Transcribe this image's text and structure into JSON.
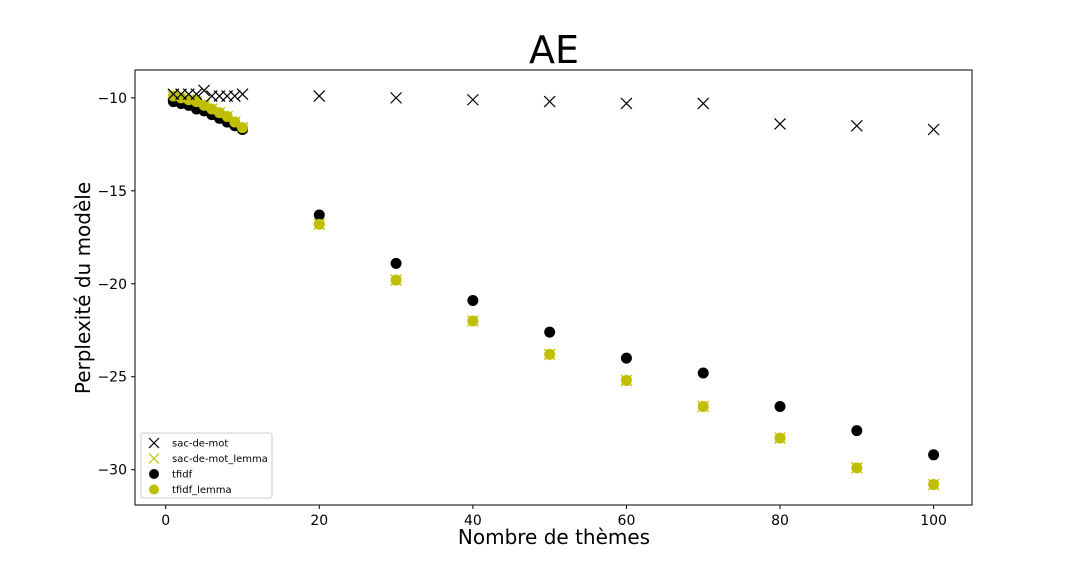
{
  "chart_data": {
    "type": "scatter",
    "title": "AE",
    "xlabel": "Nombre de thèmes",
    "ylabel": "Perplexité du modèle",
    "xlim": [
      -4,
      105
    ],
    "ylim": [
      -31.9,
      -8.5
    ],
    "xticks": [
      0,
      20,
      40,
      60,
      80,
      100
    ],
    "yticks": [
      -10,
      -15,
      -20,
      -25,
      -30
    ],
    "grid": false,
    "legend_position": "lower-left",
    "series": [
      {
        "name": "sac-de-mot",
        "marker": "x",
        "color": "#000000",
        "x": [
          1,
          2,
          3,
          4,
          5,
          6,
          7,
          8,
          9,
          10,
          20,
          30,
          40,
          50,
          60,
          70,
          80,
          90,
          100
        ],
        "y": [
          -9.8,
          -9.8,
          -9.8,
          -9.8,
          -9.6,
          -9.9,
          -9.9,
          -9.9,
          -9.9,
          -9.8,
          -9.9,
          -10.0,
          -10.1,
          -10.2,
          -10.3,
          -10.3,
          -11.4,
          -11.5,
          -11.7
        ]
      },
      {
        "name": "sac-de-mot_lemma",
        "marker": "x",
        "color": "#bfbf00",
        "x": [
          1,
          2,
          3,
          4,
          5,
          6,
          7,
          8,
          9,
          10,
          20,
          30,
          40,
          50,
          60,
          70,
          80,
          90,
          100
        ],
        "y": [
          -9.9,
          -10.0,
          -10.1,
          -10.2,
          -10.4,
          -10.6,
          -10.8,
          -11.0,
          -11.3,
          -11.6,
          -16.8,
          -19.8,
          -22.0,
          -23.8,
          -25.2,
          -26.6,
          -28.3,
          -29.9,
          -30.8
        ]
      },
      {
        "name": "tfidf",
        "marker": "o",
        "color": "#000000",
        "x": [
          1,
          2,
          3,
          4,
          5,
          6,
          7,
          8,
          9,
          10,
          20,
          30,
          40,
          50,
          60,
          70,
          80,
          90,
          100
        ],
        "y": [
          -10.2,
          -10.3,
          -10.4,
          -10.6,
          -10.7,
          -10.9,
          -11.1,
          -11.3,
          -11.5,
          -11.7,
          -16.3,
          -18.9,
          -20.9,
          -22.6,
          -24.0,
          -24.8,
          -26.6,
          -27.9,
          -29.2
        ]
      },
      {
        "name": "tfidf_lemma",
        "marker": "o",
        "color": "#bfbf00",
        "x": [
          1,
          2,
          3,
          4,
          5,
          6,
          7,
          8,
          9,
          10,
          20,
          30,
          40,
          50,
          60,
          70,
          80,
          90,
          100
        ],
        "y": [
          -9.9,
          -10.0,
          -10.1,
          -10.2,
          -10.4,
          -10.6,
          -10.8,
          -11.0,
          -11.3,
          -11.6,
          -16.8,
          -19.8,
          -22.0,
          -23.8,
          -25.2,
          -26.6,
          -28.3,
          -29.9,
          -30.8
        ]
      }
    ]
  }
}
